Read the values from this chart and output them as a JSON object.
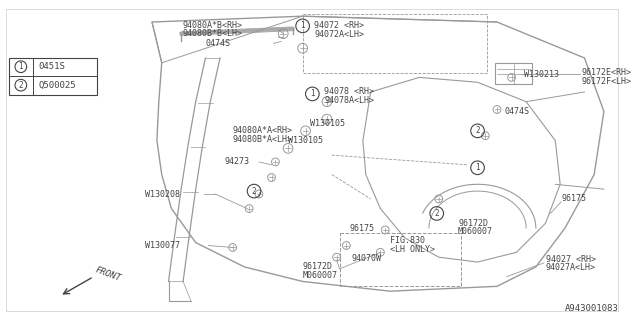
{
  "bg_color": "#ffffff",
  "line_color": "#999999",
  "text_color": "#444444",
  "diagram_id": "A943001083",
  "legend": [
    {
      "num": "1",
      "code": "0451S"
    },
    {
      "num": "2",
      "code": "Q500025"
    }
  ]
}
